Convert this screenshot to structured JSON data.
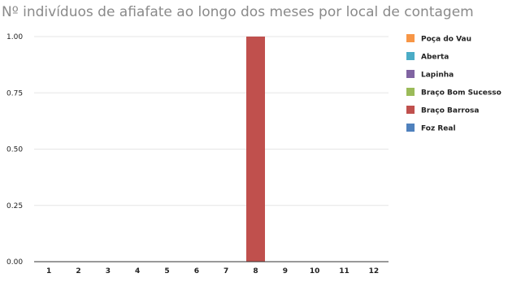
{
  "chart_data": {
    "type": "bar",
    "title": "Nº indivíduos de afiafate ao longo dos meses por local de contagem",
    "xlabel": "",
    "ylabel": "",
    "categories": [
      "1",
      "2",
      "3",
      "4",
      "5",
      "6",
      "7",
      "8",
      "9",
      "10",
      "11",
      "12"
    ],
    "ylim": [
      0,
      1
    ],
    "yticks": [
      "0.00",
      "0.25",
      "0.50",
      "0.75",
      "1.00"
    ],
    "grid": true,
    "legend_position": "right",
    "stacked": true,
    "series": [
      {
        "name": "Foz Real",
        "color": "#4f81bd",
        "values": [
          0,
          0,
          0,
          0,
          0,
          0,
          0,
          0,
          0,
          0,
          0,
          0
        ]
      },
      {
        "name": "Braço Barrosa",
        "color": "#c0504d",
        "values": [
          0,
          0,
          0,
          0,
          0,
          0,
          0,
          1,
          0,
          0,
          0,
          0
        ]
      },
      {
        "name": "Braço Bom Sucesso",
        "color": "#9bbb59",
        "values": [
          0,
          0,
          0,
          0,
          0,
          0,
          0,
          0,
          0,
          0,
          0,
          0
        ]
      },
      {
        "name": "Lapinha",
        "color": "#8064a2",
        "values": [
          0,
          0,
          0,
          0,
          0,
          0,
          0,
          0,
          0,
          0,
          0,
          0
        ]
      },
      {
        "name": "Aberta",
        "color": "#4bacc6",
        "values": [
          0,
          0,
          0,
          0,
          0,
          0,
          0,
          0,
          0,
          0,
          0,
          0
        ]
      },
      {
        "name": "Poça do Vau",
        "color": "#f79646",
        "values": [
          0,
          0,
          0,
          0,
          0,
          0,
          0,
          0,
          0,
          0,
          0,
          0
        ]
      }
    ]
  }
}
